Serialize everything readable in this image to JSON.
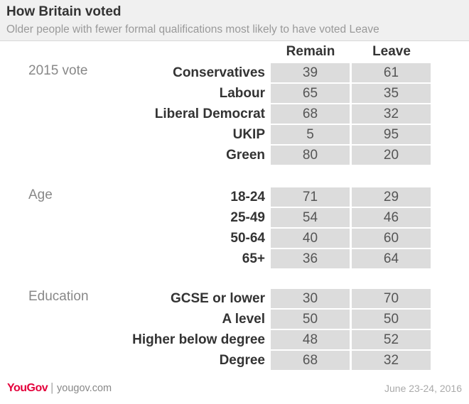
{
  "chart_data": {
    "type": "table",
    "title": "How Britain voted",
    "subtitle": "Older people with fewer formal qualifications most likely to have voted Leave",
    "columns": [
      "Remain",
      "Leave"
    ],
    "groups": [
      {
        "label": "2015 vote",
        "rows": [
          {
            "label": "Conservatives",
            "remain": "39",
            "leave": "61"
          },
          {
            "label": "Labour",
            "remain": "65",
            "leave": "35"
          },
          {
            "label": "Liberal Democrat",
            "remain": "68",
            "leave": "32"
          },
          {
            "label": "UKIP",
            "remain": "5",
            "leave": "95"
          },
          {
            "label": "Green",
            "remain": "80",
            "leave": "20"
          }
        ]
      },
      {
        "label": "Age",
        "rows": [
          {
            "label": "18-24",
            "remain": "71",
            "leave": "29"
          },
          {
            "label": "25-49",
            "remain": "54",
            "leave": "46"
          },
          {
            "label": "50-64",
            "remain": "40",
            "leave": "60"
          },
          {
            "label": "65+",
            "remain": "36",
            "leave": "64"
          }
        ]
      },
      {
        "label": "Education",
        "rows": [
          {
            "label": "GCSE or lower",
            "remain": "30",
            "leave": "70"
          },
          {
            "label": "A level",
            "remain": "50",
            "leave": "50"
          },
          {
            "label": "Higher below degree",
            "remain": "48",
            "leave": "52"
          },
          {
            "label": "Degree",
            "remain": "68",
            "leave": "32"
          }
        ]
      }
    ]
  },
  "footer": {
    "logo": "YouGov",
    "site": "yougov.com",
    "date": "June 23-24, 2016"
  },
  "colors": {
    "brand": "#e4003b",
    "cell_bg": "#dcdcdc",
    "header_bg": "#f0f0f0"
  }
}
